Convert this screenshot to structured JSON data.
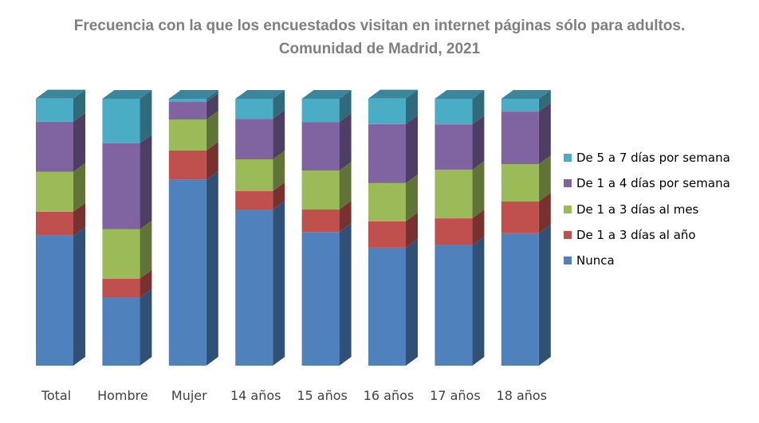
{
  "chart_data": {
    "type": "bar",
    "stacked": true,
    "percent_stacked": true,
    "style": "3d-columns",
    "title": "Frecuencia con la que los encuestados visitan en internet páginas sólo para adultos.",
    "subtitle": "Comunidad de Madrid, 2021",
    "xlabel": "",
    "ylabel": "",
    "ylim": [
      0,
      100
    ],
    "grid": false,
    "legend_position": "right",
    "categories": [
      "Total",
      "Hombre",
      "Mujer",
      "14 años",
      "15 años",
      "16 años",
      "17 años",
      "18 años"
    ],
    "series": [
      {
        "name": "Nunca",
        "color": "#4F81BD",
        "values": [
          48.7,
          25.4,
          69.6,
          58.5,
          50.1,
          44.2,
          45.1,
          49.6
        ]
      },
      {
        "name": "De 1 a 3 días al año",
        "color": "#C0504D",
        "values": [
          9.0,
          7.2,
          11.0,
          6.9,
          8.4,
          9.9,
          10.1,
          11.9
        ]
      },
      {
        "name": "De 1 a 3 días al mes",
        "color": "#9BBB59",
        "values": [
          14.9,
          18.5,
          11.6,
          11.9,
          14.6,
          14.3,
          18.2,
          14.0
        ]
      },
      {
        "name": "De 1 a 4 días por semana",
        "color": "#8064A2",
        "values": [
          18.8,
          32.2,
          6.6,
          15.2,
          18.2,
          22.1,
          17.0,
          19.7
        ]
      },
      {
        "name": "De 5 a 7 días por semana",
        "color": "#4BACC6",
        "values": [
          8.7,
          16.7,
          1.2,
          7.5,
          8.7,
          9.6,
          9.6,
          4.8
        ]
      }
    ],
    "legend_order": [
      "De 5 a 7 días por semana",
      "De 1 a 4 días por semana",
      "De 1 a 3 días al mes",
      "De 1 a 3 días al año",
      "Nunca"
    ]
  }
}
